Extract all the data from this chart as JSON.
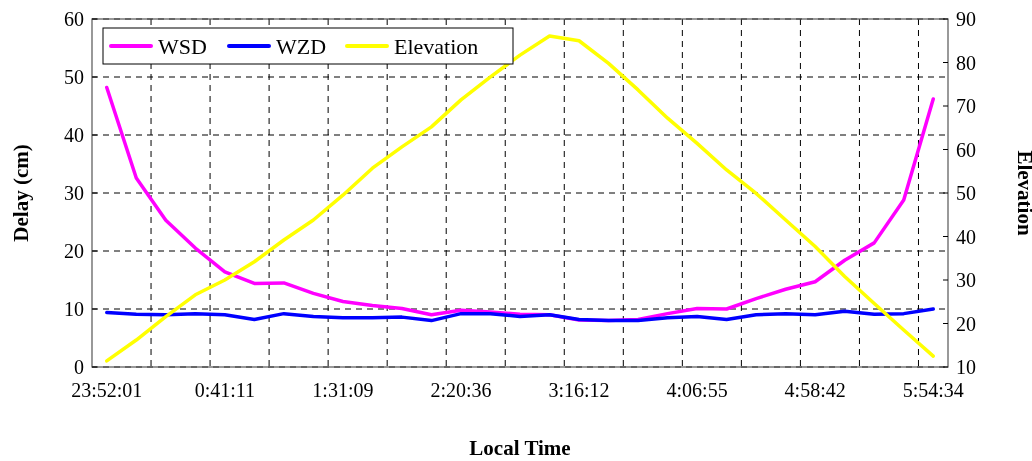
{
  "chart_data": {
    "type": "line",
    "xlabel": "Local Time",
    "ylabel": "Delay (cm)",
    "y2label": "Elevation",
    "categories": [
      "23:52:01",
      null,
      null,
      null,
      "0:41:11",
      null,
      null,
      null,
      "1:31:09",
      null,
      null,
      null,
      "2:20:36",
      null,
      null,
      null,
      "3:16:12",
      null,
      null,
      null,
      "4:06:55",
      null,
      null,
      null,
      "4:58:42",
      null,
      null,
      null,
      "5:54:34"
    ],
    "series": [
      {
        "name": "WSD",
        "color": "#ff00ff",
        "values": [
          48.2,
          32.6,
          25.3,
          20.5,
          16.4,
          14.4,
          14.5,
          12.7,
          11.3,
          10.6,
          10.1,
          9.0,
          9.8,
          9.5,
          9.1,
          9.0,
          8.1,
          8.0,
          8.2,
          9.2,
          10.1,
          10.0,
          11.8,
          13.4,
          14.7,
          18.4,
          21.4,
          28.8,
          46.2
        ]
      },
      {
        "name": "WZD",
        "color": "#0000ff",
        "values": [
          9.4,
          9.1,
          9.0,
          9.2,
          9.0,
          8.2,
          9.2,
          8.7,
          8.5,
          8.5,
          8.6,
          8.0,
          9.2,
          9.2,
          8.7,
          9.0,
          8.2,
          8.0,
          8.0,
          8.5,
          8.7,
          8.2,
          9.0,
          9.2,
          9.0,
          9.6,
          9.1,
          9.2,
          10.0
        ]
      },
      {
        "name": "Elevation",
        "color": "#ffff00",
        "axis": "y2",
        "values": [
          11.4,
          16.2,
          21.6,
          26.6,
          30.0,
          34.2,
          39.2,
          43.8,
          49.5,
          55.7,
          60.6,
          65.2,
          71.4,
          76.7,
          81.7,
          86.1,
          85.0,
          79.8,
          73.7,
          67.2,
          61.4,
          55.3,
          49.9,
          43.8,
          37.7,
          30.8,
          24.6,
          18.5,
          12.5
        ]
      }
    ],
    "ylim": [
      0,
      60
    ],
    "yticks": [
      0,
      10,
      20,
      30,
      40,
      50,
      60
    ],
    "y2lim": [
      10,
      90
    ],
    "y2ticks": [
      10,
      20,
      30,
      40,
      50,
      60,
      70,
      80,
      90
    ],
    "grid": true,
    "legend": "top left",
    "line_style": "solid",
    "marker": "none"
  }
}
